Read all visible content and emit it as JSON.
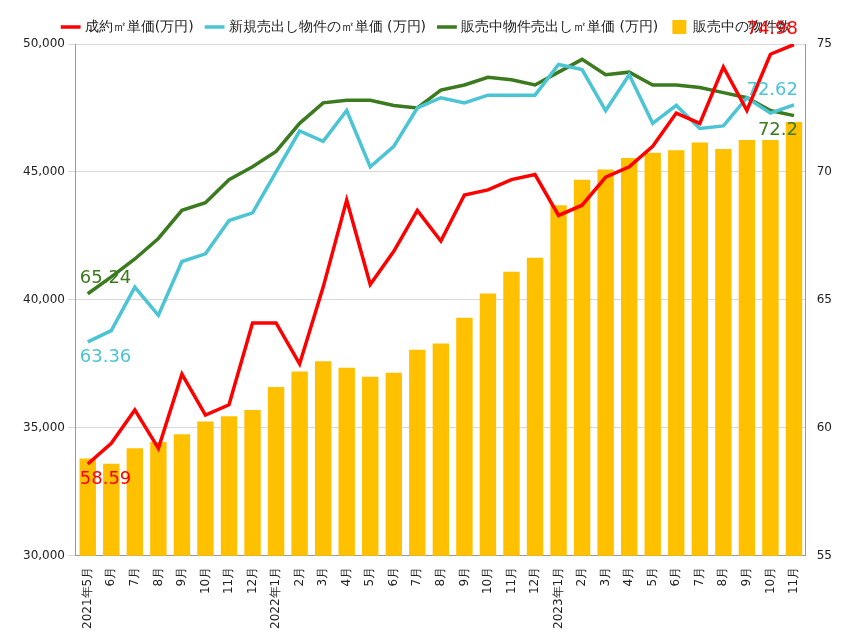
{
  "chart_data": {
    "type": "bar",
    "categories": [
      "2021年5月",
      "6月",
      "7月",
      "8月",
      "9月",
      "10月",
      "11月",
      "12月",
      "2022年1月",
      "2月",
      "3月",
      "4月",
      "5月",
      "6月",
      "7月",
      "8月",
      "9月",
      "10月",
      "11月",
      "12月",
      "2023年1月",
      "2月",
      "3月",
      "4月",
      "5月",
      "6月",
      "7月",
      "8月",
      "9月",
      "10月",
      "11月"
    ],
    "series": [
      {
        "name": "販売中の物件数",
        "type": "bar",
        "color": "#FFC000",
        "values": [
          33800,
          33600,
          34200,
          34450,
          34750,
          35250,
          35450,
          35700,
          36600,
          37200,
          37600,
          37350,
          37000,
          37150,
          38050,
          38300,
          39300,
          40250,
          41100,
          41650,
          43700,
          44700,
          45100,
          45550,
          45750,
          45850,
          46150,
          45900,
          46250,
          46250,
          46950
        ]
      },
      {
        "name": "成約㎡単価(万円)",
        "type": "line",
        "color": "#FF0000",
        "axis": "y2",
        "values": [
          58.59,
          59.4,
          60.7,
          59.2,
          62.1,
          60.5,
          60.9,
          64.1,
          64.1,
          62.5,
          65.5,
          68.9,
          65.6,
          66.9,
          68.5,
          67.3,
          69.1,
          69.3,
          69.7,
          69.9,
          68.3,
          68.7,
          69.8,
          70.2,
          71.0,
          72.3,
          71.9,
          74.1,
          72.4,
          74.6,
          74.98
        ],
        "value_labels": [
          "58.59",
          null,
          null,
          null,
          null,
          null,
          null,
          null,
          null,
          null,
          null,
          null,
          null,
          null,
          null,
          null,
          null,
          null,
          null,
          null,
          null,
          null,
          null,
          null,
          null,
          null,
          null,
          null,
          null,
          null,
          "74.98"
        ]
      },
      {
        "name": "新規売出し物件の㎡単価 (万円)",
        "type": "line",
        "color": "#4BC4D4",
        "axis": "y2",
        "values": [
          63.36,
          63.8,
          65.5,
          64.4,
          66.5,
          66.8,
          68.1,
          68.4,
          70.0,
          71.6,
          71.2,
          72.4,
          70.2,
          71.0,
          72.5,
          72.9,
          72.7,
          73.0,
          73.0,
          73.0,
          74.2,
          74.0,
          72.4,
          73.8,
          71.9,
          72.6,
          71.7,
          71.8,
          72.9,
          72.3,
          72.62
        ],
        "value_labels": [
          "63.36",
          null,
          null,
          null,
          null,
          null,
          null,
          null,
          null,
          null,
          null,
          null,
          null,
          null,
          null,
          null,
          null,
          null,
          null,
          null,
          null,
          null,
          null,
          null,
          null,
          null,
          null,
          null,
          null,
          null,
          "72.62"
        ]
      },
      {
        "name": "販売中物件売出し㎡単価 (万円)",
        "type": "line",
        "color": "#3B7A1E",
        "axis": "y2",
        "values": [
          65.24,
          65.9,
          66.6,
          67.4,
          68.5,
          68.8,
          69.7,
          70.2,
          70.8,
          71.9,
          72.7,
          72.8,
          72.8,
          72.6,
          72.5,
          73.2,
          73.4,
          73.7,
          73.6,
          73.4,
          73.9,
          74.4,
          73.8,
          73.9,
          73.4,
          73.4,
          73.3,
          73.1,
          72.9,
          72.4,
          72.2
        ],
        "value_labels": [
          "65.24",
          null,
          null,
          null,
          null,
          null,
          null,
          null,
          null,
          null,
          null,
          null,
          null,
          null,
          null,
          null,
          null,
          null,
          null,
          null,
          null,
          null,
          null,
          null,
          null,
          null,
          null,
          null,
          null,
          null,
          "72.2"
        ]
      }
    ],
    "ylim": [
      30000,
      50000
    ],
    "yticks": [
      {
        "value": 30000,
        "label": "30,000"
      },
      {
        "value": 35000,
        "label": "35,000"
      },
      {
        "value": 40000,
        "label": "40,000"
      },
      {
        "value": 45000,
        "label": "45,000"
      },
      {
        "value": 50000,
        "label": "50,000"
      }
    ],
    "y2lim": [
      55,
      75
    ],
    "y2ticks": [
      55,
      60,
      65,
      70,
      75
    ],
    "grid": true,
    "legend": "top"
  }
}
